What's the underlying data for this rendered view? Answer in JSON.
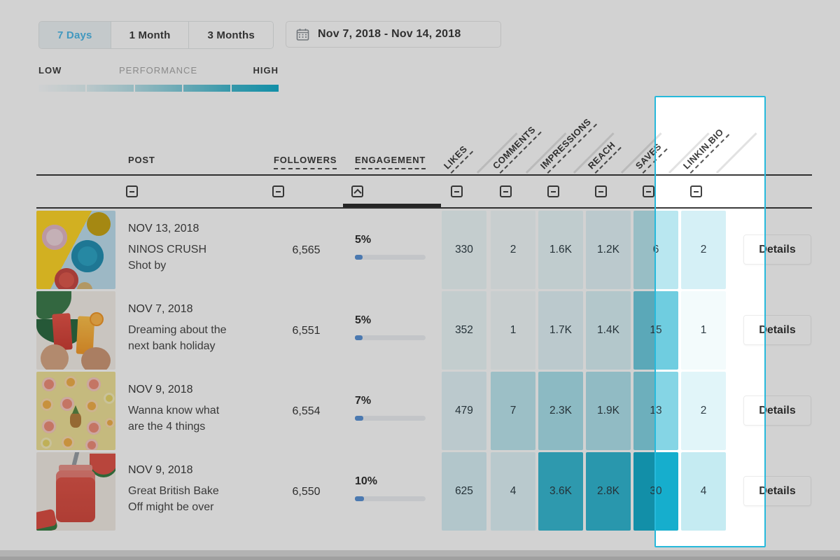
{
  "theme": {
    "accent_cyan": "#27b9db",
    "active_tab_text": "#4fb9e8",
    "heat_rgb": "22,174,205",
    "engagement_fill": "#5b94d6",
    "gradient_end": "#16aecd"
  },
  "icons": {
    "calendar": "calendar-grid",
    "column_collapse": "minus-box",
    "column_expand": "caret-up-box"
  },
  "toolbar": {
    "tabs": [
      {
        "label": "7 Days",
        "active": true
      },
      {
        "label": "1 Month",
        "active": false
      },
      {
        "label": "3 Months",
        "active": false
      }
    ],
    "date_range": "Nov 7, 2018 - Nov 14, 2018"
  },
  "legend": {
    "low": "LOW",
    "title": "PERFORMANCE",
    "high": "HIGH"
  },
  "table": {
    "columns": {
      "post": "POST",
      "followers": "FOLLOWERS",
      "engagement": "ENGAGEMENT",
      "metrics": [
        "LIKES",
        "COMMENTS",
        "IMPRESSIONS",
        "REACH",
        "SAVES",
        "LINKIN.BIO"
      ]
    },
    "details_label": "Details",
    "rows": [
      {
        "date": "NOV 13, 2018",
        "title": "NINOS CRUSH\nShot by",
        "followers": "6,565",
        "engagement_pct": "5%",
        "engagement_value": 5,
        "metrics": {
          "likes": "330",
          "comments": "2",
          "impressions": "1.6K",
          "reach": "1.2K",
          "saves": "6",
          "linkinbio": "2"
        },
        "heat": {
          "likes": 0.07,
          "comments": 0.05,
          "impressions": 0.09,
          "reach": 0.12,
          "saves": 0.3,
          "linkinbio": 0.18
        }
      },
      {
        "date": "NOV 7, 2018",
        "title": "Dreaming about the\nnext bank holiday",
        "followers": "6,551",
        "engagement_pct": "5%",
        "engagement_value": 5,
        "metrics": {
          "likes": "352",
          "comments": "1",
          "impressions": "1.7K",
          "reach": "1.4K",
          "saves": "15",
          "linkinbio": "1"
        },
        "heat": {
          "likes": 0.08,
          "comments": 0.05,
          "impressions": 0.12,
          "reach": 0.16,
          "saves": 0.62,
          "linkinbio": 0.05
        }
      },
      {
        "date": "NOV 9, 2018",
        "title": "Wanna know what\nare the 4 things",
        "followers": "6,554",
        "engagement_pct": "7%",
        "engagement_value": 7,
        "metrics": {
          "likes": "479",
          "comments": "7",
          "impressions": "2.3K",
          "reach": "1.9K",
          "saves": "13",
          "linkinbio": "2"
        },
        "heat": {
          "likes": 0.12,
          "comments": 0.28,
          "impressions": 0.36,
          "reach": 0.34,
          "saves": 0.52,
          "linkinbio": 0.13
        }
      },
      {
        "date": "NOV 9, 2018",
        "title": "Great British Bake\nOff might be over",
        "followers": "6,550",
        "engagement_pct": "10%",
        "engagement_value": 10,
        "metrics": {
          "likes": "625",
          "comments": "4",
          "impressions": "3.6K",
          "reach": "2.8K",
          "saves": "30",
          "linkinbio": "4"
        },
        "heat": {
          "likes": 0.17,
          "comments": 0.13,
          "impressions": 0.85,
          "reach": 0.88,
          "saves": 1.0,
          "linkinbio": 0.25
        }
      }
    ]
  }
}
